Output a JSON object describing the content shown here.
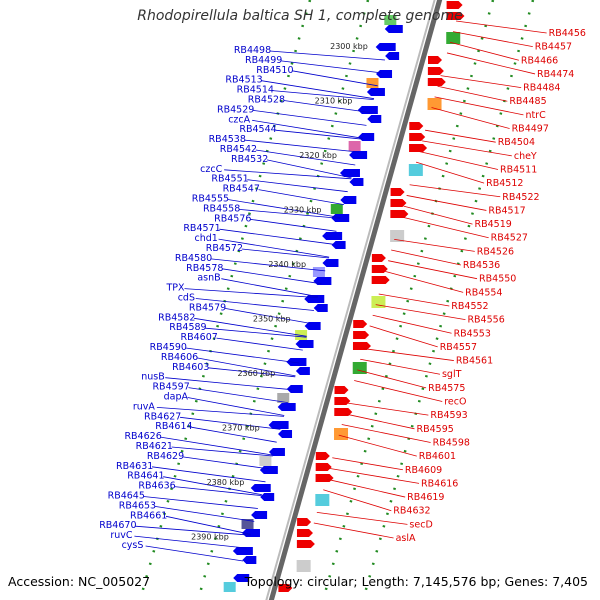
{
  "title": "Rhodopirellula baltica SH 1, complete genome",
  "accession": "Accession: NC_005027",
  "topology": "Topology: circular; Length: 7,145,576 bp; Genes: 7,405",
  "colors": {
    "left_labels": "#0000cc",
    "right_labels": "#dd0000",
    "kbp_ticks": "#228b22",
    "backbone": "#888888"
  },
  "kbp_ticks": [
    "2300 kbp",
    "2310 kbp",
    "2320 kbp",
    "2330 kbp",
    "2340 kbp",
    "2350 kbp",
    "2360 kbp",
    "2370 kbp",
    "2380 kbp",
    "2390 kbp"
  ],
  "left_labels": [
    "RB4498",
    "RB4499",
    "RB4510",
    "RB4513",
    "RB4514",
    "RB4528",
    "RB4529",
    "czcA",
    "RB4544",
    "RB4538",
    "RB4542",
    "RB4532",
    "czcC",
    "RB4551",
    "RB4547",
    "RB4555",
    "RB4558",
    "RB4576",
    "RB4571",
    "chd1",
    "RB4572",
    "RB4580",
    "RB4578",
    "asnB",
    "TPX",
    "cdS",
    "RB4579",
    "RB4582",
    "RB4589",
    "RB4607",
    "RB4590",
    "RB4606",
    "RB4603",
    "nusB",
    "RB4597",
    "dapA",
    "ruvA",
    "RB4627",
    "RB4614",
    "RB4626",
    "RB4621",
    "RB4629",
    "RB4631",
    "RB4641",
    "RB4636",
    "RB4645",
    "RB4653",
    "RB4661",
    "RB4670",
    "ruvC",
    "cysS"
  ],
  "right_labels": [
    "RB4456",
    "RB4457",
    "RB4466",
    "RB4474",
    "RB4484",
    "RB4485",
    "ntrC",
    "RB4497",
    "RB4504",
    "cheY",
    "RB4511",
    "RB4512",
    "RB4522",
    "RB4517",
    "RB4519",
    "RB4527",
    "RB4526",
    "RB4536",
    "RB4550",
    "RB4554",
    "RB4552",
    "RB4556",
    "RB4553",
    "RB4557",
    "RB4561",
    "sglT",
    "RB4575",
    "recO",
    "RB4593",
    "RB4595",
    "RB4598",
    "RB4601",
    "RB4609",
    "RB4616",
    "RB4619",
    "RB4632",
    "secD",
    "aslA"
  ]
}
